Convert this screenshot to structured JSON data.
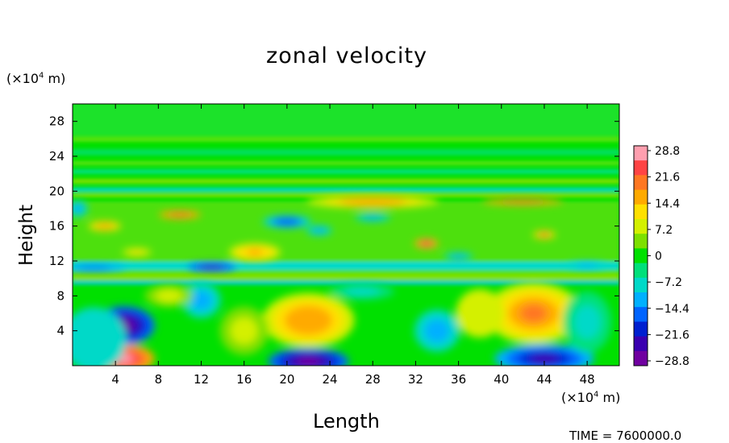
{
  "chart_data": {
    "type": "heatmap",
    "title": "zonal velocity",
    "xlabel": "Length",
    "ylabel": "Height",
    "x_unit": "(×10",
    "x_unit_exp": "4",
    "x_unit_tail": " m)",
    "y_unit": "(×10",
    "y_unit_exp": "4",
    "y_unit_tail": " m)",
    "xlim": [
      0,
      51
    ],
    "ylim": [
      0,
      30
    ],
    "x_ticks": [
      "4",
      "8",
      "12",
      "16",
      "20",
      "24",
      "28",
      "32",
      "36",
      "40",
      "44",
      "48"
    ],
    "y_ticks": [
      "4",
      "8",
      "12",
      "16",
      "20",
      "24",
      "28"
    ],
    "colorbar": {
      "min": -28.8,
      "max": 28.8,
      "tick_labels": [
        "28.8",
        "21.6",
        "14.4",
        "7.2",
        "0",
        "−7.2",
        "−14.4",
        "−21.6",
        "−28.8"
      ],
      "colors": [
        "#ff9faf",
        "#ff4444",
        "#ff7722",
        "#ffaa00",
        "#ffe000",
        "#d4f000",
        "#7de000",
        "#00e000",
        "#00e07a",
        "#00d9c8",
        "#00b0ff",
        "#0064ff",
        "#0020d0",
        "#3a00b0",
        "#7000a0"
      ]
    },
    "features": [
      {
        "x": 4.8,
        "y": 0.8,
        "value": 28.8
      },
      {
        "x": 4.8,
        "y": 4.6,
        "value": -28.8
      },
      {
        "x": 22,
        "y": 5.2,
        "value": 18
      },
      {
        "x": 22,
        "y": 0.5,
        "value": -28.8
      },
      {
        "x": 43,
        "y": 6,
        "value": 20
      },
      {
        "x": 44,
        "y": 0.8,
        "value": -25
      },
      {
        "x": 12,
        "y": 7.5,
        "value": -14
      },
      {
        "x": 17,
        "y": 13,
        "value": 16
      },
      {
        "x": 28,
        "y": 18.8,
        "value": 18
      },
      {
        "x": 20,
        "y": 16.5,
        "value": -18
      }
    ]
  },
  "footer": {
    "time": "TIME = 7600000.0"
  }
}
